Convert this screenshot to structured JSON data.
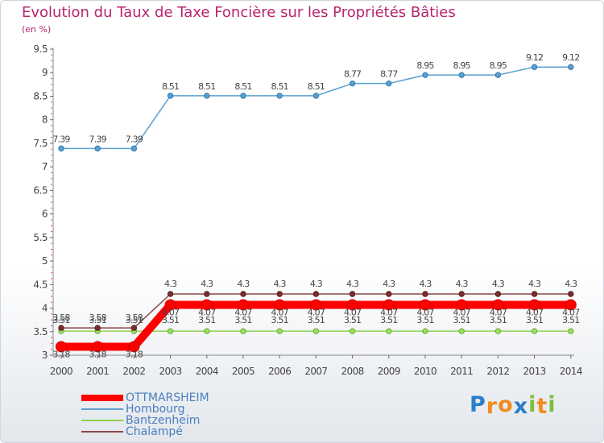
{
  "chart_data": {
    "type": "line",
    "title": "Evolution du Taux de Taxe Foncière sur les Propriétés Bâties",
    "subtitle": "(en %)",
    "xlabel": "",
    "ylabel": "",
    "ylim": [
      3,
      9.5
    ],
    "y_ticks": [
      "3",
      "3.5",
      "4",
      "4.5",
      "5",
      "5.5",
      "6",
      "6.5",
      "7",
      "7.5",
      "8",
      "8.5",
      "9",
      "9.5"
    ],
    "categories": [
      "2000",
      "2001",
      "2002",
      "2003",
      "2004",
      "2005",
      "2006",
      "2007",
      "2008",
      "2009",
      "2010",
      "2011",
      "2012",
      "2013",
      "2014"
    ],
    "grid": false,
    "legend_position": "bottom-left",
    "series": [
      {
        "name": "OTTMARSHEIM",
        "color": "#ff0000",
        "values": [
          3.18,
          3.18,
          3.18,
          4.07,
          4.07,
          4.07,
          4.07,
          4.07,
          4.07,
          4.07,
          4.07,
          4.07,
          4.07,
          4.07,
          4.07
        ],
        "labels": [
          "3.18",
          "3.18",
          "3.18",
          "4.07",
          "4.07",
          "4.07",
          "4.07",
          "4.07",
          "4.07",
          "4.07",
          "4.07",
          "4.07",
          "4.07",
          "4.07",
          "4.07"
        ]
      },
      {
        "name": "Hombourg",
        "color": "#5aa0d0",
        "values": [
          7.39,
          7.39,
          7.39,
          8.51,
          8.51,
          8.51,
          8.51,
          8.51,
          8.77,
          8.77,
          8.95,
          8.95,
          8.95,
          9.12,
          9.12
        ],
        "labels": [
          "7.39",
          "7.39",
          "7.39",
          "8.51",
          "8.51",
          "8.51",
          "8.51",
          "8.51",
          "8.77",
          "8.77",
          "8.95",
          "8.95",
          "8.95",
          "9.12",
          "9.12"
        ]
      },
      {
        "name": "Bantzenheim",
        "color": "#8fd14f",
        "values": [
          3.51,
          3.51,
          3.51,
          3.51,
          3.51,
          3.51,
          3.51,
          3.51,
          3.51,
          3.51,
          3.51,
          3.51,
          3.51,
          3.51,
          3.51
        ],
        "labels": [
          "3.51",
          "3.51",
          "3.51",
          "3.51",
          "3.51",
          "3.51",
          "3.51",
          "3.51",
          "3.51",
          "3.51",
          "3.51",
          "3.51",
          "3.51",
          "3.51",
          "3.51"
        ]
      },
      {
        "name": "Chalampé",
        "color": "#8b4a4a",
        "values": [
          3.58,
          3.58,
          3.58,
          4.3,
          4.3,
          4.3,
          4.3,
          4.3,
          4.3,
          4.3,
          4.3,
          4.3,
          4.3,
          4.3,
          4.3
        ],
        "labels": [
          "3.58",
          "3.58",
          "3.58",
          "4.3",
          "4.3",
          "4.3",
          "4.3",
          "4.3",
          "4.3",
          "4.3",
          "4.3",
          "4.3",
          "4.3",
          "4.3",
          "4.3"
        ]
      }
    ]
  },
  "brand": {
    "logo_text": "Proxiti",
    "letters": [
      "P",
      "r",
      "o",
      "x",
      "i",
      "t",
      "i"
    ],
    "letter_colors": [
      "#2b7fc9",
      "#f28c1e",
      "#f28c1e",
      "#2b7fc9",
      "#7cbf3a",
      "#f28c1e",
      "#7cbf3a"
    ]
  }
}
